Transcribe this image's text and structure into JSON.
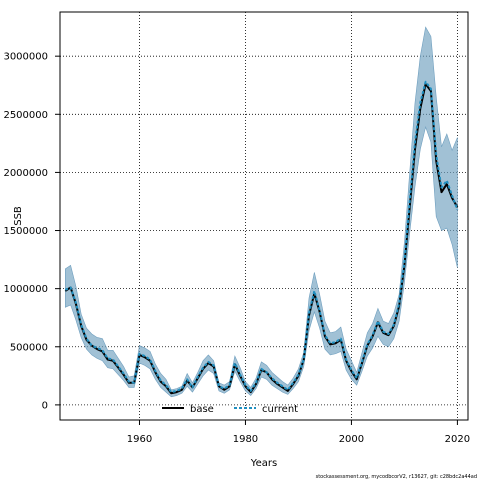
{
  "chart_data": {
    "type": "line",
    "title": "",
    "xlabel": "Years",
    "ylabel": "SSB",
    "xlim": [
      1945,
      2022
    ],
    "ylim": [
      -130000,
      3380000
    ],
    "x_ticks": [
      1960,
      1980,
      2000,
      2020
    ],
    "y_ticks": [
      0,
      500000,
      1000000,
      1500000,
      2000000,
      2500000,
      3000000
    ],
    "grid": true,
    "legend_position": "bottom-left",
    "band_color": "#6f9fbf",
    "band_opacity": 0.65,
    "years": [
      1946,
      1947,
      1948,
      1949,
      1950,
      1951,
      1952,
      1953,
      1954,
      1955,
      1956,
      1957,
      1958,
      1959,
      1960,
      1961,
      1962,
      1963,
      1964,
      1965,
      1966,
      1967,
      1968,
      1969,
      1970,
      1971,
      1972,
      1973,
      1974,
      1975,
      1976,
      1977,
      1978,
      1979,
      1980,
      1981,
      1982,
      1983,
      1984,
      1985,
      1986,
      1987,
      1988,
      1989,
      1990,
      1991,
      1992,
      1993,
      1994,
      1995,
      1996,
      1997,
      1998,
      1999,
      2000,
      2001,
      2002,
      2003,
      2004,
      2005,
      2006,
      2007,
      2008,
      2009,
      2010,
      2011,
      2012,
      2013,
      2014,
      2015,
      2016,
      2017,
      2018,
      2019,
      2020
    ],
    "band_upper": [
      1170000,
      1200000,
      1020000,
      780000,
      660000,
      610000,
      580000,
      570000,
      470000,
      470000,
      400000,
      330000,
      240000,
      250000,
      510000,
      490000,
      460000,
      350000,
      270000,
      220000,
      130000,
      140000,
      160000,
      270000,
      190000,
      280000,
      380000,
      430000,
      380000,
      190000,
      170000,
      200000,
      420000,
      320000,
      200000,
      150000,
      230000,
      370000,
      340000,
      280000,
      240000,
      200000,
      170000,
      230000,
      310000,
      450000,
      920000,
      1140000,
      950000,
      720000,
      620000,
      630000,
      670000,
      480000,
      380000,
      280000,
      450000,
      620000,
      700000,
      830000,
      720000,
      700000,
      790000,
      950000,
      1400000,
      2000000,
      2600000,
      3000000,
      3250000,
      3170000,
      2650000,
      2220000,
      2330000,
      2190000,
      2300000
    ],
    "series": [
      {
        "name": "base",
        "color": "#000000",
        "values": [
          980000,
          1010000,
          870000,
          680000,
          560000,
          510000,
          480000,
          460000,
          390000,
          380000,
          320000,
          260000,
          190000,
          190000,
          430000,
          410000,
          380000,
          280000,
          200000,
          160000,
          100000,
          110000,
          130000,
          210000,
          150000,
          230000,
          310000,
          360000,
          330000,
          160000,
          130000,
          160000,
          350000,
          250000,
          160000,
          110000,
          180000,
          300000,
          280000,
          220000,
          180000,
          150000,
          120000,
          180000,
          250000,
          390000,
          770000,
          960000,
          800000,
          590000,
          520000,
          530000,
          560000,
          380000,
          290000,
          220000,
          360000,
          510000,
          590000,
          710000,
          620000,
          600000,
          680000,
          850000,
          1200000,
          1700000,
          2200000,
          2550000,
          2760000,
          2700000,
          2100000,
          1830000,
          1900000,
          1780000,
          1700000
        ]
      },
      {
        "name": "current",
        "color": "#1f8fc0",
        "values": [
          990000,
          1010000,
          880000,
          690000,
          570000,
          510000,
          490000,
          470000,
          400000,
          390000,
          330000,
          270000,
          200000,
          190000,
          440000,
          420000,
          390000,
          290000,
          210000,
          170000,
          110000,
          120000,
          140000,
          220000,
          150000,
          240000,
          320000,
          370000,
          340000,
          160000,
          140000,
          170000,
          360000,
          260000,
          170000,
          120000,
          190000,
          310000,
          280000,
          230000,
          190000,
          160000,
          130000,
          190000,
          260000,
          390000,
          790000,
          980000,
          810000,
          600000,
          530000,
          540000,
          570000,
          390000,
          300000,
          230000,
          370000,
          520000,
          600000,
          720000,
          630000,
          610000,
          690000,
          870000,
          1230000,
          1750000,
          2260000,
          2600000,
          2780000,
          2720000,
          2150000,
          1870000,
          1930000,
          1800000,
          1680000
        ]
      }
    ],
    "band_lower": [
      840000,
      860000,
      730000,
      580000,
      480000,
      430000,
      400000,
      380000,
      320000,
      310000,
      260000,
      210000,
      150000,
      150000,
      360000,
      340000,
      310000,
      220000,
      150000,
      110000,
      70000,
      80000,
      100000,
      160000,
      110000,
      180000,
      250000,
      300000,
      270000,
      120000,
      100000,
      130000,
      290000,
      200000,
      120000,
      80000,
      140000,
      240000,
      220000,
      170000,
      140000,
      110000,
      90000,
      140000,
      200000,
      330000,
      640000,
      800000,
      660000,
      480000,
      430000,
      440000,
      460000,
      300000,
      220000,
      170000,
      290000,
      420000,
      490000,
      590000,
      520000,
      500000,
      570000,
      720000,
      1050000,
      1480000,
      1880000,
      2200000,
      2390000,
      2260000,
      1620000,
      1500000,
      1520000,
      1380000,
      1180000
    ]
  },
  "legend": {
    "base_label": "base",
    "current_label": "current"
  },
  "footnote": "stockassessment.org, mycodbcorV2, r13627, git: c28bdc2a44ad"
}
